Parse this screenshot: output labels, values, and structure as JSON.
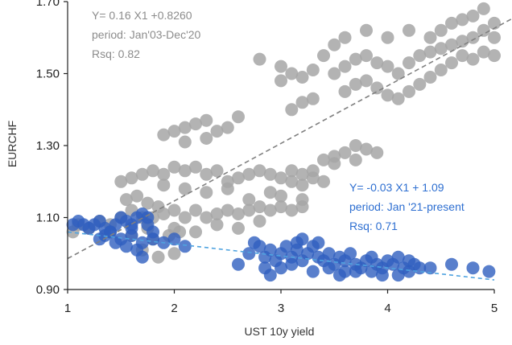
{
  "chart_data": {
    "type": "scatter",
    "xlabel": "UST 10y yield",
    "ylabel": "EURCHF",
    "xlim": [
      1,
      5
    ],
    "ylim": [
      0.9,
      1.7
    ],
    "x_ticks": [
      1,
      2,
      3,
      4,
      5
    ],
    "y_ticks": [
      {
        "value": 0.9,
        "label": "0.90"
      },
      {
        "value": 1.1,
        "label": "1.10"
      },
      {
        "value": 1.3,
        "label": "1.30"
      },
      {
        "value": 1.5,
        "label": "1.50"
      },
      {
        "value": 1.7,
        "label": "1.70"
      }
    ],
    "grid": false,
    "colors": {
      "gray": "#a6a6a6",
      "blue": "#2f5fbf",
      "blue_text": "#2e6fd1",
      "gray_text": "#8c8c8c",
      "trend_gray": "#808080",
      "trend_blue": "#4fa3e0"
    },
    "series": [
      {
        "color": "#a6a6a6",
        "trend": {
          "slope": 0.16,
          "intercept": 0.826
        },
        "annotation": [
          "Y= 0.16 X1 +0.8260",
          "period: Jan'03-Dec'20",
          "Rsq: 0.82"
        ],
        "points": [
          [
            1.05,
            1.06
          ],
          [
            1.1,
            1.08
          ],
          [
            1.2,
            1.07
          ],
          [
            1.3,
            1.09
          ],
          [
            1.4,
            1.08
          ],
          [
            1.5,
            1.1
          ],
          [
            1.6,
            1.12
          ],
          [
            1.7,
            1.1
          ],
          [
            1.75,
            1.07
          ],
          [
            1.8,
            1.1
          ],
          [
            1.9,
            1.11
          ],
          [
            2.0,
            1.12
          ],
          [
            2.1,
            1.1
          ],
          [
            2.2,
            1.12
          ],
          [
            2.3,
            1.1
          ],
          [
            2.4,
            1.11
          ],
          [
            2.5,
            1.12
          ],
          [
            2.6,
            1.11
          ],
          [
            2.7,
            1.12
          ],
          [
            2.8,
            1.13
          ],
          [
            2.9,
            1.12
          ],
          [
            3.0,
            1.13
          ],
          [
            3.1,
            1.12
          ],
          [
            3.2,
            1.13
          ],
          [
            2.0,
            1.07
          ],
          [
            2.2,
            1.06
          ],
          [
            2.4,
            1.08
          ],
          [
            2.6,
            1.07
          ],
          [
            2.8,
            1.09
          ],
          [
            1.5,
            1.2
          ],
          [
            1.6,
            1.21
          ],
          [
            1.7,
            1.22
          ],
          [
            1.8,
            1.23
          ],
          [
            1.9,
            1.22
          ],
          [
            2.0,
            1.24
          ],
          [
            2.1,
            1.23
          ],
          [
            2.2,
            1.24
          ],
          [
            2.3,
            1.22
          ],
          [
            2.4,
            1.23
          ],
          [
            2.5,
            1.2
          ],
          [
            2.6,
            1.21
          ],
          [
            2.7,
            1.22
          ],
          [
            2.8,
            1.23
          ],
          [
            2.9,
            1.22
          ],
          [
            3.0,
            1.21
          ],
          [
            3.1,
            1.2
          ],
          [
            3.2,
            1.19
          ],
          [
            2.9,
            1.17
          ],
          [
            3.0,
            1.16
          ],
          [
            2.5,
            1.18
          ],
          [
            2.3,
            1.17
          ],
          [
            2.1,
            1.18
          ],
          [
            1.9,
            1.19
          ],
          [
            3.1,
            1.23
          ],
          [
            3.2,
            1.22
          ],
          [
            3.3,
            1.21
          ],
          [
            3.4,
            1.2
          ],
          [
            3.2,
            1.15
          ],
          [
            2.7,
            1.15
          ],
          [
            1.55,
            1.15
          ],
          [
            1.65,
            1.16
          ],
          [
            1.75,
            1.14
          ],
          [
            1.85,
            1.13
          ],
          [
            1.6,
            1.05
          ],
          [
            1.8,
            1.04
          ],
          [
            1.95,
            1.05
          ],
          [
            2.05,
            1.06
          ],
          [
            1.85,
            0.99
          ],
          [
            2.0,
            1.0
          ],
          [
            1.7,
            1.01
          ],
          [
            1.9,
            1.33
          ],
          [
            2.0,
            1.34
          ],
          [
            2.1,
            1.35
          ],
          [
            2.2,
            1.36
          ],
          [
            2.3,
            1.37
          ],
          [
            2.4,
            1.34
          ],
          [
            2.5,
            1.35
          ],
          [
            2.1,
            1.31
          ],
          [
            2.3,
            1.32
          ],
          [
            2.6,
            1.38
          ],
          [
            3.3,
            1.23
          ],
          [
            3.4,
            1.26
          ],
          [
            3.5,
            1.27
          ],
          [
            3.6,
            1.28
          ],
          [
            3.7,
            1.3
          ],
          [
            3.8,
            1.29
          ],
          [
            3.5,
            1.25
          ],
          [
            3.7,
            1.26
          ],
          [
            3.9,
            1.28
          ],
          [
            2.8,
            1.54
          ],
          [
            3.0,
            1.52
          ],
          [
            3.1,
            1.5
          ],
          [
            3.2,
            1.49
          ],
          [
            3.3,
            1.51
          ],
          [
            3.0,
            1.48
          ],
          [
            3.4,
            1.55
          ],
          [
            3.5,
            1.5
          ],
          [
            3.6,
            1.52
          ],
          [
            3.7,
            1.54
          ],
          [
            3.8,
            1.55
          ],
          [
            3.9,
            1.53
          ],
          [
            4.0,
            1.52
          ],
          [
            4.1,
            1.5
          ],
          [
            4.2,
            1.53
          ],
          [
            4.3,
            1.55
          ],
          [
            4.4,
            1.56
          ],
          [
            3.6,
            1.45
          ],
          [
            3.7,
            1.47
          ],
          [
            3.8,
            1.48
          ],
          [
            3.9,
            1.46
          ],
          [
            4.0,
            1.44
          ],
          [
            4.1,
            1.43
          ],
          [
            4.2,
            1.45
          ],
          [
            4.3,
            1.47
          ],
          [
            3.5,
            1.58
          ],
          [
            3.6,
            1.6
          ],
          [
            3.8,
            1.62
          ],
          [
            4.0,
            1.6
          ],
          [
            4.2,
            1.62
          ],
          [
            4.4,
            1.6
          ],
          [
            4.5,
            1.62
          ],
          [
            4.6,
            1.64
          ],
          [
            4.5,
            1.57
          ],
          [
            4.6,
            1.58
          ],
          [
            4.7,
            1.59
          ],
          [
            4.8,
            1.6
          ],
          [
            4.9,
            1.62
          ],
          [
            5.0,
            1.6
          ],
          [
            4.7,
            1.65
          ],
          [
            4.8,
            1.66
          ],
          [
            4.9,
            1.68
          ],
          [
            5.0,
            1.64
          ],
          [
            4.6,
            1.53
          ],
          [
            4.7,
            1.55
          ],
          [
            4.8,
            1.54
          ],
          [
            4.9,
            1.56
          ],
          [
            5.0,
            1.55
          ],
          [
            4.5,
            1.51
          ],
          [
            4.4,
            1.49
          ],
          [
            3.1,
            1.4
          ],
          [
            3.2,
            1.42
          ],
          [
            3.3,
            1.43
          ]
        ]
      },
      {
        "color": "#2f5fbf",
        "trend": {
          "slope": -0.03,
          "intercept": 1.09
        },
        "annotation": [
          "Y= -0.03 X1 + 1.09",
          "period: Jan '21-present",
          "Rsq: 0.71"
        ],
        "points": [
          [
            1.05,
            1.08
          ],
          [
            1.1,
            1.09
          ],
          [
            1.15,
            1.08
          ],
          [
            1.2,
            1.07
          ],
          [
            1.25,
            1.08
          ],
          [
            1.3,
            1.09
          ],
          [
            1.35,
            1.07
          ],
          [
            1.4,
            1.06
          ],
          [
            1.45,
            1.08
          ],
          [
            1.5,
            1.1
          ],
          [
            1.55,
            1.09
          ],
          [
            1.6,
            1.07
          ],
          [
            1.65,
            1.1
          ],
          [
            1.7,
            1.11
          ],
          [
            1.75,
            1.1
          ],
          [
            1.3,
            1.04
          ],
          [
            1.35,
            1.05
          ],
          [
            1.45,
            1.03
          ],
          [
            1.5,
            1.04
          ],
          [
            1.6,
            1.05
          ],
          [
            1.55,
            1.02
          ],
          [
            1.65,
            1.01
          ],
          [
            1.4,
            1.06
          ],
          [
            1.6,
            1.08
          ],
          [
            1.75,
            1.08
          ],
          [
            1.8,
            1.06
          ],
          [
            1.7,
            1.03
          ],
          [
            1.7,
            0.99
          ],
          [
            1.8,
            1.04
          ],
          [
            1.9,
            1.03
          ],
          [
            2.0,
            1.04
          ],
          [
            2.1,
            1.02
          ],
          [
            2.6,
            0.97
          ],
          [
            2.7,
            1.0
          ],
          [
            2.75,
            1.03
          ],
          [
            2.8,
            1.02
          ],
          [
            2.85,
            0.99
          ],
          [
            2.9,
            1.01
          ],
          [
            2.95,
            0.98
          ],
          [
            3.0,
            1.0
          ],
          [
            3.05,
            1.02
          ],
          [
            3.1,
            0.99
          ],
          [
            3.15,
            1.01
          ],
          [
            3.2,
            0.98
          ],
          [
            3.25,
            1.0
          ],
          [
            3.3,
            1.02
          ],
          [
            3.35,
            0.99
          ],
          [
            3.4,
            0.98
          ],
          [
            3.45,
            1.0
          ],
          [
            3.5,
            0.97
          ],
          [
            3.55,
            0.99
          ],
          [
            3.6,
            0.98
          ],
          [
            3.65,
            1.0
          ],
          [
            3.7,
            0.97
          ],
          [
            3.75,
            0.96
          ],
          [
            3.8,
            0.98
          ],
          [
            3.85,
            0.99
          ],
          [
            3.9,
            0.97
          ],
          [
            3.95,
            0.96
          ],
          [
            4.0,
            0.98
          ],
          [
            4.05,
            0.97
          ],
          [
            4.1,
            0.99
          ],
          [
            4.15,
            0.96
          ],
          [
            4.2,
            0.98
          ],
          [
            4.25,
            0.97
          ],
          [
            4.3,
            0.96
          ],
          [
            2.85,
            0.96
          ],
          [
            2.9,
            0.94
          ],
          [
            3.0,
            0.96
          ],
          [
            3.1,
            0.97
          ],
          [
            3.3,
            0.95
          ],
          [
            3.45,
            0.96
          ],
          [
            3.55,
            0.94
          ],
          [
            3.7,
            0.95
          ],
          [
            3.85,
            0.95
          ],
          [
            3.95,
            0.94
          ],
          [
            4.1,
            0.94
          ],
          [
            4.2,
            0.95
          ],
          [
            3.2,
            1.04
          ],
          [
            3.15,
            1.03
          ],
          [
            3.35,
            1.03
          ],
          [
            3.6,
            0.95
          ],
          [
            4.4,
            0.96
          ],
          [
            4.6,
            0.97
          ],
          [
            4.8,
            0.96
          ],
          [
            4.95,
            0.95
          ]
        ]
      }
    ]
  }
}
